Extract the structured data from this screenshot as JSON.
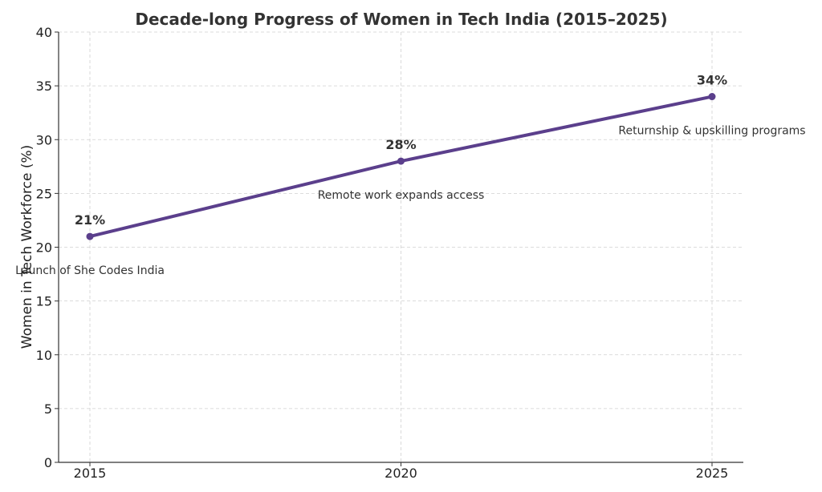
{
  "chart_data": {
    "type": "line",
    "title": "Decade-long Progress of Women in Tech India (2015–2025)",
    "xlabel": "",
    "ylabel": "Women in Tech Workforce (%)",
    "x": [
      2015,
      2020,
      2025
    ],
    "x_tick_labels": [
      "2015",
      "2020",
      "2025"
    ],
    "ylim": [
      0,
      40
    ],
    "y_ticks": [
      0,
      5,
      10,
      15,
      20,
      25,
      30,
      35,
      40
    ],
    "y_tick_labels": [
      "0",
      "5",
      "10",
      "15",
      "20",
      "25",
      "30",
      "35",
      "40"
    ],
    "grid": true,
    "series": [
      {
        "name": "Women in Tech Workforce",
        "values": [
          21,
          28,
          34
        ],
        "color": "#5b3f8c",
        "data_labels": [
          "21%",
          "28%",
          "34%"
        ]
      }
    ],
    "annotations": [
      {
        "x": 2015,
        "text": "Launch of She Codes India"
      },
      {
        "x": 2020,
        "text": "Remote work expands access"
      },
      {
        "x": 2025,
        "text": "Returnship & upskilling programs"
      }
    ]
  }
}
